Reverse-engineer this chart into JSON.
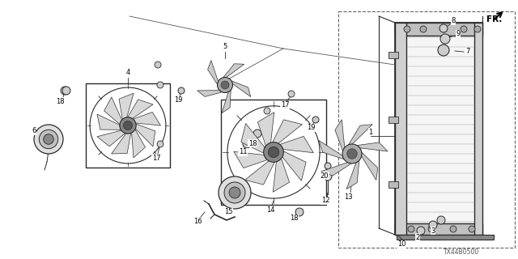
{
  "bg_color": "#ffffff",
  "lc": "#2a2a2a",
  "part_code": "TX44B0500",
  "fr_label": "FR.",
  "text_fontsize": 6.0
}
